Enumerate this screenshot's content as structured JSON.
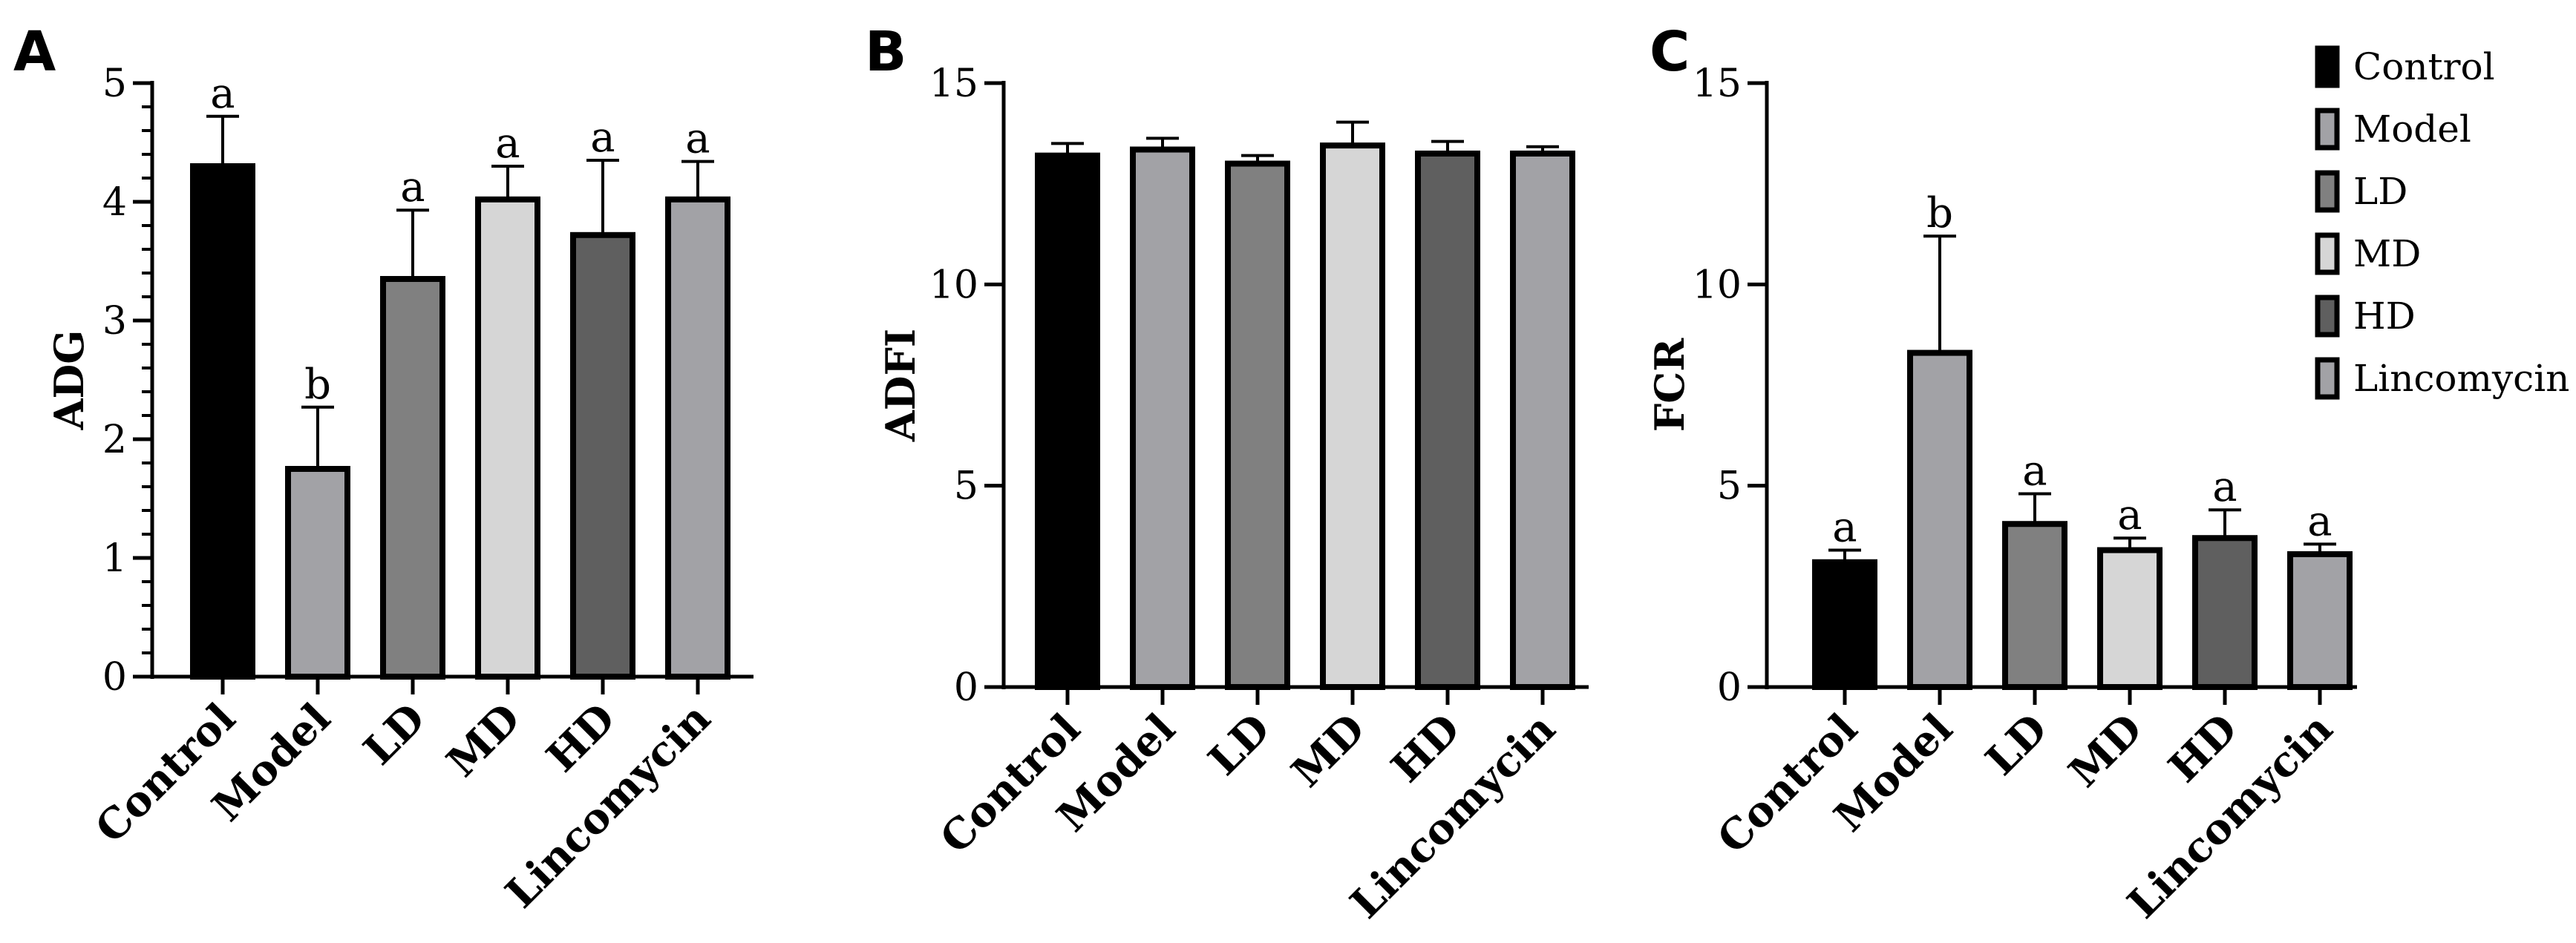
{
  "chart_data": [
    {
      "type": "bar",
      "panel_label": "A",
      "ylabel": "ADG",
      "categories": [
        "Control",
        "Model",
        "LD",
        "MD",
        "HD",
        "Lincomycin"
      ],
      "values": [
        4.3,
        1.75,
        3.35,
        4.02,
        3.72,
        4.02
      ],
      "errors": [
        0.42,
        0.52,
        0.58,
        0.28,
        0.63,
        0.32
      ],
      "significance": [
        "a",
        "b",
        "a",
        "a",
        "a",
        "a"
      ],
      "ylim": [
        0,
        5
      ],
      "yticks": [
        "0",
        "1",
        "2",
        "3",
        "4",
        "5"
      ],
      "minor_ticks": true,
      "grid": false
    },
    {
      "type": "bar",
      "panel_label": "B",
      "ylabel": "ADFI",
      "categories": [
        "Control",
        "Model",
        "LD",
        "MD",
        "HD",
        "Lincomycin"
      ],
      "values": [
        13.2,
        13.35,
        13.0,
        13.45,
        13.25,
        13.25
      ],
      "errors": [
        0.3,
        0.28,
        0.2,
        0.58,
        0.3,
        0.17
      ],
      "significance": [],
      "ylim": [
        0,
        15
      ],
      "yticks": [
        "0",
        "5",
        "10",
        "15"
      ],
      "minor_ticks": false,
      "grid": false
    },
    {
      "type": "bar",
      "panel_label": "C",
      "ylabel": "FCR",
      "categories": [
        "Control",
        "Model",
        "LD",
        "MD",
        "HD",
        "Lincomycin"
      ],
      "values": [
        3.1,
        8.3,
        4.05,
        3.4,
        3.7,
        3.3
      ],
      "errors": [
        0.3,
        2.9,
        0.75,
        0.3,
        0.7,
        0.25
      ],
      "significance": [
        "a",
        "b",
        "a",
        "a",
        "a",
        "a"
      ],
      "ylim": [
        0,
        15
      ],
      "yticks": [
        "0",
        "5",
        "10",
        "15"
      ],
      "minor_ticks": false,
      "grid": false
    }
  ],
  "legend": {
    "placement": "top-right",
    "entries": [
      {
        "label": "Control",
        "color": "#000000"
      },
      {
        "label": "Model",
        "color": "#a2a2a6"
      },
      {
        "label": "LD",
        "color": "#808080"
      },
      {
        "label": "MD",
        "color": "#d6d6d6"
      },
      {
        "label": "HD",
        "color": "#5f5f5f"
      },
      {
        "label": "Lincomycin",
        "color": "#a2a2a6"
      }
    ]
  },
  "bar_colors": [
    "#000000",
    "#a2a2a6",
    "#808080",
    "#d6d6d6",
    "#5f5f5f",
    "#a2a2a6"
  ]
}
